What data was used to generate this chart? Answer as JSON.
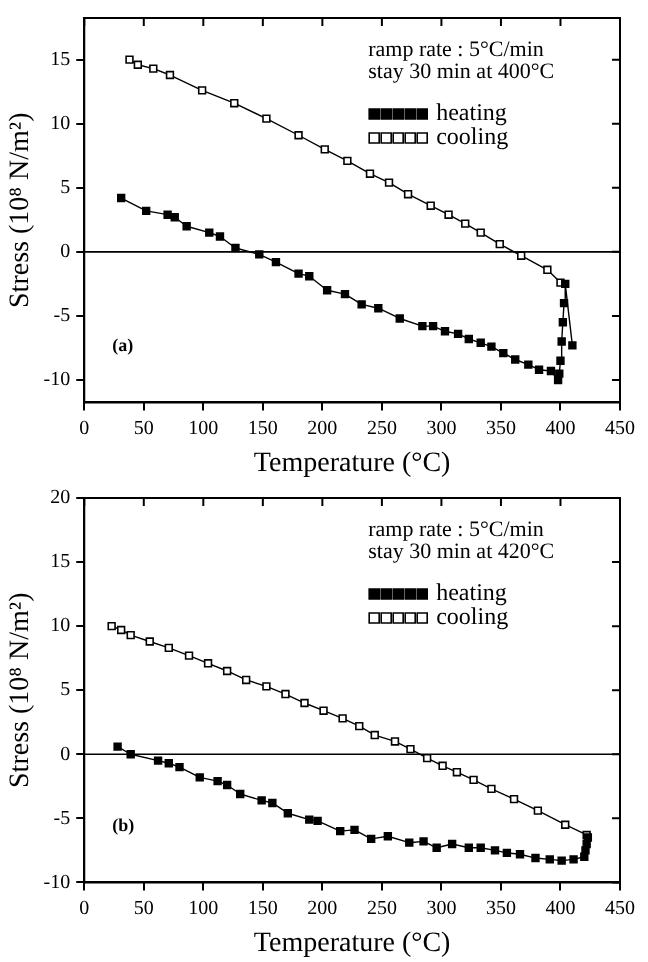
{
  "chart_data": [
    {
      "type": "line",
      "xlabel": "Temperature (°C)",
      "ylabel": "Stress (10⁸ N/m²)",
      "annotations": [
        "ramp rate : 5°C/min",
        "stay 30 min at 400°C",
        "(a)"
      ],
      "xlim": [
        0,
        450
      ],
      "xticks": [
        0,
        50,
        100,
        150,
        200,
        250,
        300,
        350,
        400,
        450
      ],
      "ylim": [
        -11.75,
        18.25
      ],
      "yticks": [
        -10,
        -5,
        0,
        5,
        10,
        15
      ],
      "grid": false,
      "legend": "top right",
      "marker": "square",
      "ref_lines": [
        {
          "axis": "y",
          "value": 0
        }
      ],
      "series": [
        {
          "name": "heating",
          "color": "#000000",
          "x": [
            31,
            52,
            70,
            76,
            86,
            105,
            114,
            127,
            147,
            161,
            180,
            189,
            204,
            219,
            233,
            247,
            265,
            284,
            293,
            303,
            314,
            323,
            333,
            342,
            352,
            362,
            373,
            382,
            392,
            398,
            399,
            400,
            401,
            402,
            403,
            404,
            410
          ],
          "values": [
            4.2,
            3.2,
            2.9,
            2.7,
            2.0,
            1.5,
            1.2,
            0.3,
            -0.2,
            -0.8,
            -1.7,
            -1.9,
            -3.0,
            -3.3,
            -4.1,
            -4.4,
            -5.2,
            -5.8,
            -5.8,
            -6.2,
            -6.4,
            -6.8,
            -7.1,
            -7.4,
            -7.9,
            -8.4,
            -8.8,
            -9.2,
            -9.3,
            -10,
            -9.5,
            -8.5,
            -7,
            -5.5,
            -4,
            -2.5,
            -7.3
          ]
        },
        {
          "name": "cooling",
          "color": "#000000",
          "x": [
            400,
            389,
            367,
            349,
            333,
            320,
            306,
            291,
            272,
            256,
            240,
            221,
            202,
            180,
            153,
            126,
            99,
            72,
            58,
            45,
            38
          ],
          "values": [
            -2.4,
            -1.4,
            -0.3,
            0.6,
            1.5,
            2.2,
            2.9,
            3.6,
            4.5,
            5.4,
            6.1,
            7.1,
            8.0,
            9.1,
            10.4,
            11.6,
            12.6,
            13.8,
            14.3,
            14.6,
            15.0
          ]
        }
      ]
    },
    {
      "type": "line",
      "xlabel": "Temperature (°C)",
      "ylabel": "Stress (10⁸ N/m²)",
      "annotations": [
        "ramp rate : 5°C/min",
        "stay 30 min at 420°C",
        "(b)"
      ],
      "xlim": [
        0,
        450
      ],
      "xticks": [
        0,
        50,
        100,
        150,
        200,
        250,
        300,
        350,
        400,
        450
      ],
      "ylim": [
        -10,
        20
      ],
      "yticks": [
        -10,
        -5,
        0,
        5,
        10,
        15,
        20
      ],
      "grid": false,
      "legend": "top right",
      "marker": "square",
      "ref_lines": [
        {
          "axis": "y",
          "value": 0
        }
      ],
      "series": [
        {
          "name": "heating",
          "color": "#000000",
          "x": [
            28,
            39,
            62,
            71,
            80,
            97,
            112,
            120,
            131,
            149,
            158,
            171,
            189,
            196,
            215,
            227,
            241,
            255,
            273,
            285,
            296,
            309,
            323,
            333,
            345,
            355,
            366,
            379,
            391,
            401,
            411,
            420,
            421,
            422,
            423
          ],
          "values": [
            0.6,
            0,
            -0.5,
            -0.7,
            -1.0,
            -1.8,
            -2.1,
            -2.4,
            -3.1,
            -3.6,
            -3.8,
            -4.6,
            -5.1,
            -5.2,
            -6.0,
            -5.9,
            -6.6,
            -6.4,
            -6.9,
            -6.8,
            -7.3,
            -7.0,
            -7.3,
            -7.3,
            -7.5,
            -7.7,
            -7.8,
            -8.1,
            -8.2,
            -8.3,
            -8.2,
            -8.0,
            -7.5,
            -7.0,
            -6.5
          ]
        },
        {
          "name": "cooling",
          "color": "#000000",
          "x": [
            422,
            404,
            381,
            361,
            342,
            327,
            313,
            301,
            288,
            274,
            261,
            244,
            231,
            217,
            201,
            185,
            169,
            153,
            136,
            120,
            104,
            88,
            71,
            55,
            39,
            31,
            23
          ],
          "values": [
            -6.3,
            -5.5,
            -4.4,
            -3.5,
            -2.7,
            -2.0,
            -1.4,
            -0.9,
            -0.3,
            0.4,
            1.0,
            1.5,
            2.2,
            2.8,
            3.4,
            4.0,
            4.7,
            5.3,
            5.8,
            6.5,
            7.1,
            7.7,
            8.3,
            8.8,
            9.3,
            9.7,
            10
          ]
        }
      ]
    }
  ]
}
